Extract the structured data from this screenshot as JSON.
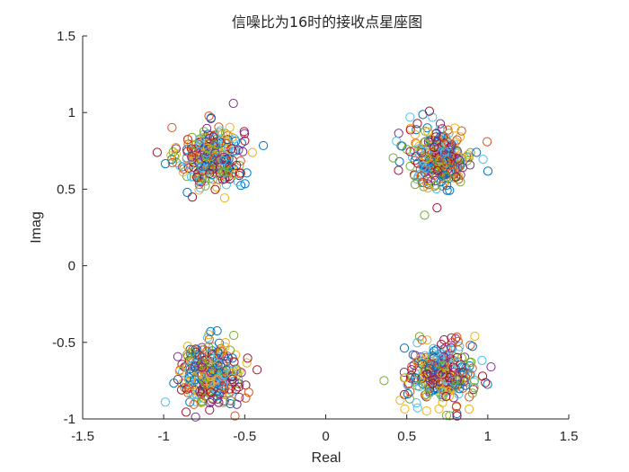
{
  "chart_data": {
    "type": "scatter",
    "title": "信噪比为16时的接收点星座图",
    "xlabel": "Real",
    "ylabel": "Imag",
    "xlim": [
      -1.5,
      1.5
    ],
    "ylim": [
      -1,
      1.5
    ],
    "xticks": [
      -1.5,
      -1,
      -0.5,
      0,
      0.5,
      1,
      1.5
    ],
    "xtick_labels": [
      "-1.5",
      "-1",
      "-0.5",
      "0",
      "0.5",
      "1",
      "1.5"
    ],
    "yticks": [
      -1,
      -0.5,
      0,
      0.5,
      1,
      1.5
    ],
    "ytick_labels": [
      "-1",
      "-0.5",
      "0",
      "0.5",
      "1",
      "1.5"
    ],
    "marker": "circle-open",
    "grid": false,
    "box": false,
    "colors": [
      "#0072BD",
      "#D95319",
      "#EDB120",
      "#7E2F8E",
      "#77AC30",
      "#4DBEEE",
      "#A2142F"
    ],
    "constellation_points": [
      {
        "real": -0.707,
        "imag": 0.707
      },
      {
        "real": 0.707,
        "imag": 0.707
      },
      {
        "real": -0.707,
        "imag": -0.707
      },
      {
        "real": 0.707,
        "imag": -0.707
      }
    ],
    "noise_sigma": 0.1,
    "points_per_cluster": 300,
    "outliers": [
      {
        "real": -0.57,
        "imag": 1.06
      },
      {
        "real": 0.61,
        "imag": 0.33
      },
      {
        "real": 0.52,
        "imag": 0.97
      },
      {
        "real": -1.04,
        "imag": 0.74
      },
      {
        "real": 0.93,
        "imag": 0.74
      },
      {
        "real": -0.56,
        "imag": -0.98
      },
      {
        "real": 0.92,
        "imag": -0.46
      },
      {
        "real": 1.02,
        "imag": -0.66
      },
      {
        "real": 0.36,
        "imag": -0.75
      },
      {
        "real": -0.99,
        "imag": -0.89
      },
      {
        "real": 0.81,
        "imag": -0.98
      },
      {
        "real": -0.71,
        "imag": -0.43
      }
    ]
  }
}
